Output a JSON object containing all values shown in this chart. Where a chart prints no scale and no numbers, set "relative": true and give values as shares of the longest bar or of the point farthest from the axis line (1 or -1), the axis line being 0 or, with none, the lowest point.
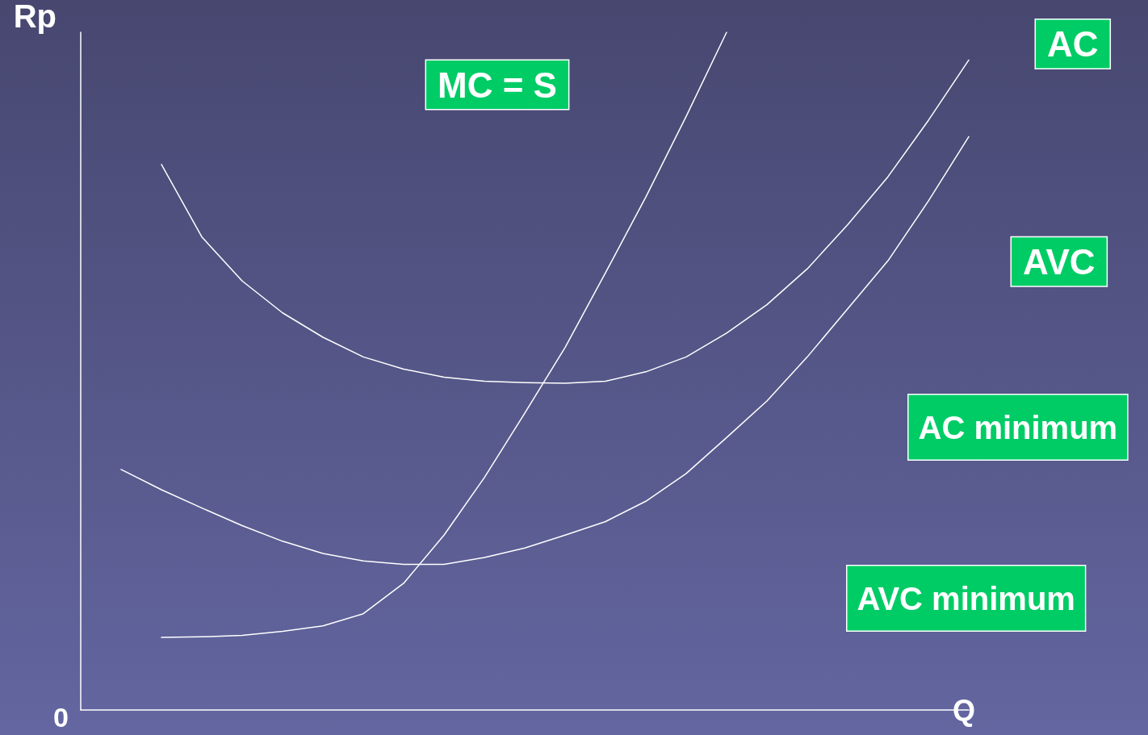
{
  "chart_data": {
    "type": "line",
    "relative": true,
    "xlabel": "Q",
    "ylabel": "Rp",
    "legend": false,
    "grid": false,
    "marker": "none",
    "line_style": "solid",
    "categories": [
      null,
      null,
      null,
      null,
      null,
      null,
      null,
      null,
      null,
      null,
      null,
      null,
      null,
      null,
      null,
      null,
      null,
      null,
      null,
      null,
      null,
      null,
      null
    ],
    "series": [
      {
        "name": "MC = S",
        "color": "#ffffff",
        "values": [
          null,
          null,
          0.107,
          0.108,
          0.11,
          0.116,
          0.124,
          0.142,
          0.187,
          0.258,
          0.343,
          0.438,
          0.535,
          0.645,
          0.757,
          0.876,
          1,
          null,
          null,
          null,
          null,
          null,
          null
        ]
      },
      {
        "name": "AC",
        "color": "#ffffff",
        "values": [
          null,
          null,
          0.805,
          0.698,
          0.633,
          0.586,
          0.55,
          0.521,
          0.503,
          0.491,
          0.485,
          0.483,
          0.482,
          0.485,
          0.499,
          0.521,
          0.556,
          0.598,
          0.651,
          0.716,
          0.787,
          0.87,
          0.959
        ]
      },
      {
        "name": "AVC",
        "color": "#ffffff",
        "values": [
          null,
          0.355,
          0.325,
          0.298,
          0.272,
          0.249,
          0.231,
          0.22,
          0.215,
          0.215,
          0.225,
          0.239,
          0.258,
          0.278,
          0.308,
          0.349,
          0.402,
          0.456,
          0.521,
          0.592,
          0.663,
          0.751,
          0.846
        ]
      }
    ],
    "annotations": [
      "AC minimum",
      "AVC minimum",
      "0"
    ]
  }
}
